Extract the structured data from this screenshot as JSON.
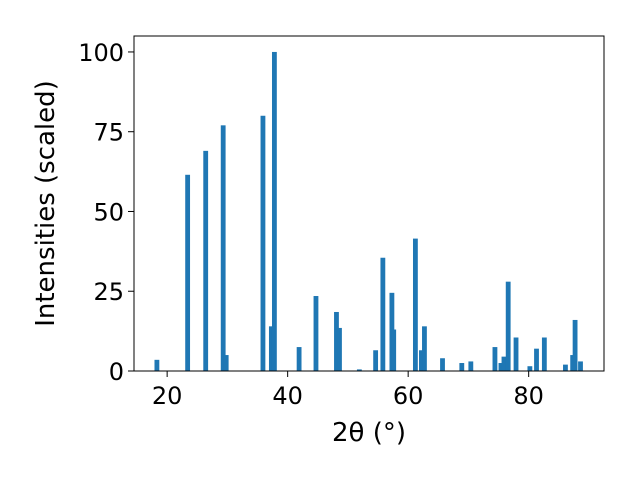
{
  "chart_data": {
    "type": "bar",
    "title": "",
    "xlabel": "2θ (°)",
    "ylabel": "Intensities (scaled)",
    "xlim": [
      14.5,
      92.5
    ],
    "ylim": [
      0,
      105
    ],
    "xticks": [
      20,
      40,
      60,
      80
    ],
    "yticks": [
      0,
      25,
      50,
      75,
      100
    ],
    "bar_color": "#1f77b4",
    "bar_width": 0.8,
    "grid": false,
    "legend": "none",
    "x": [
      18.3,
      23.4,
      26.4,
      29.3,
      29.8,
      35.9,
      37.3,
      37.8,
      41.9,
      44.7,
      48.1,
      48.6,
      51.9,
      54.6,
      55.8,
      57.3,
      57.6,
      61.2,
      62.2,
      62.7,
      65.7,
      68.9,
      70.4,
      74.4,
      75.4,
      75.9,
      76.6,
      77.9,
      80.2,
      81.3,
      82.6,
      86.1,
      87.3,
      87.7,
      88.6
    ],
    "values": [
      3.5,
      61.5,
      69,
      77,
      5,
      80,
      14,
      100,
      7.5,
      23.5,
      18.5,
      13.5,
      0.5,
      6.5,
      35.5,
      24.5,
      13,
      41.5,
      6.5,
      14,
      4,
      2.5,
      3,
      7.5,
      2.5,
      4.5,
      28,
      10.5,
      1.5,
      7,
      10.5,
      2,
      5,
      16,
      3
    ]
  }
}
